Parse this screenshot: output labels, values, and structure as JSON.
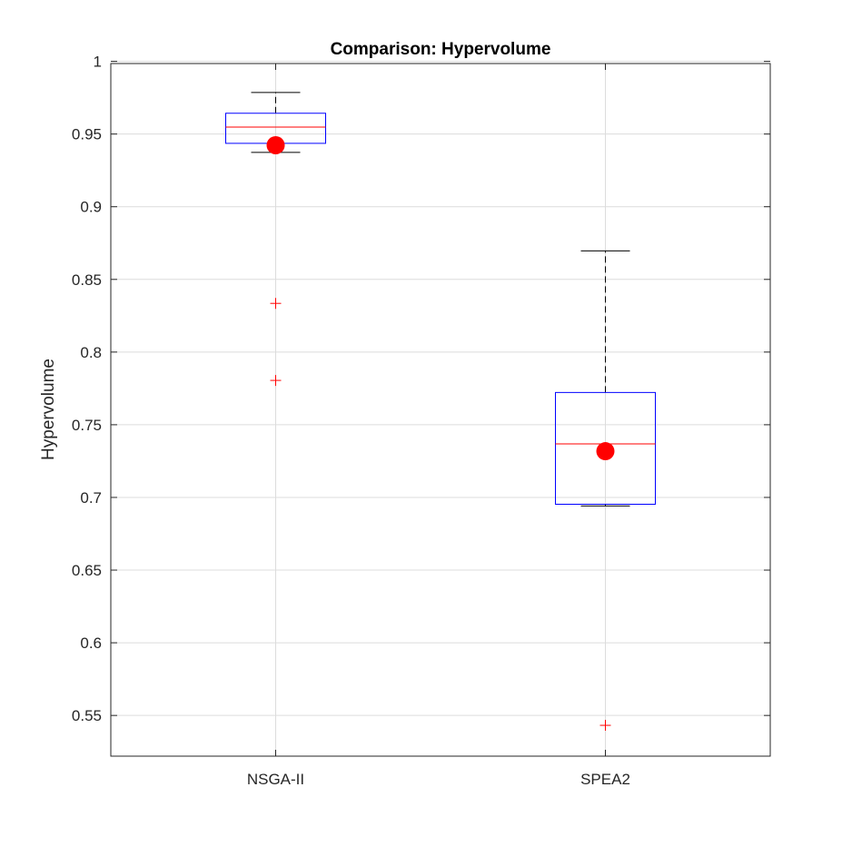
{
  "chart_data": {
    "type": "box",
    "title": "Comparison: Hypervolume",
    "xlabel": "",
    "ylabel": "Hypervolume",
    "ylim": [
      0.522,
      0.9985
    ],
    "y_ticks": [
      0.55,
      0.6,
      0.65,
      0.7,
      0.75,
      0.8,
      0.85,
      0.9,
      0.95,
      1
    ],
    "y_tick_labels": [
      "0.55",
      "0.6",
      "0.65",
      "0.7",
      "0.75",
      "0.8",
      "0.85",
      "0.9",
      "0.95",
      "1"
    ],
    "grid": true,
    "categories": [
      "NSGA-II",
      "SPEA2"
    ],
    "boxes": [
      {
        "category": "NSGA-II",
        "whisker_low": 0.9374,
        "q1": 0.9436,
        "median": 0.9548,
        "q3": 0.9643,
        "whisker_high": 0.9786,
        "mean": 0.9423,
        "outliers": [
          0.8335,
          0.7805
        ]
      },
      {
        "category": "SPEA2",
        "whisker_low": 0.6941,
        "q1": 0.6953,
        "median": 0.7368,
        "q3": 0.7722,
        "whisker_high": 0.8696,
        "mean": 0.7318,
        "outliers": [
          0.5432
        ]
      }
    ],
    "colors": {
      "box": "#0000ff",
      "median": "#ff0000",
      "mean_marker": "#ff0000",
      "outlier": "#ff0000",
      "whisker": "#000000",
      "grid": "#dcdcdc",
      "axes": "#262626"
    }
  }
}
